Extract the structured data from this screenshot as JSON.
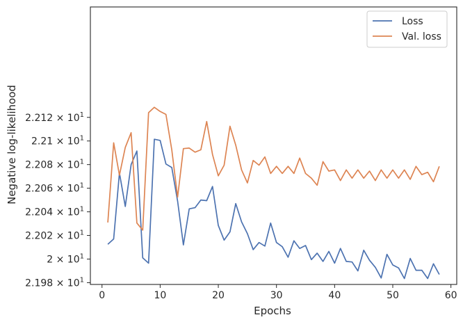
{
  "chart_data": {
    "type": "line",
    "xlabel": "Epochs",
    "ylabel": "Negative log-likelihood",
    "xlim": [
      -2,
      61
    ],
    "ylim": [
      21.9785,
      22.2135
    ],
    "xticks": [
      0,
      10,
      20,
      30,
      40,
      50,
      60
    ],
    "xtick_labels": [
      "0",
      "10",
      "20",
      "30",
      "40",
      "50",
      "60"
    ],
    "yticks": [
      21.98,
      22.0,
      22.02,
      22.04,
      22.06,
      22.08,
      22.1,
      22.12
    ],
    "ytick_labels": [
      {
        "mantissa": "2.198",
        "exponent": "1"
      },
      {
        "mantissa": "2",
        "exponent": "1"
      },
      {
        "mantissa": "2.202",
        "exponent": "1"
      },
      {
        "mantissa": "2.204",
        "exponent": "1"
      },
      {
        "mantissa": "2.206",
        "exponent": "1"
      },
      {
        "mantissa": "2.208",
        "exponent": "1"
      },
      {
        "mantissa": "2.21",
        "exponent": "1"
      },
      {
        "mantissa": "2.212",
        "exponent": "1"
      }
    ],
    "grid": false,
    "legend_position": "top-right",
    "series": [
      {
        "name": "Loss",
        "color": "#4c72b0",
        "x": [
          1,
          2,
          3,
          4,
          5,
          6,
          7,
          8,
          9,
          10,
          11,
          12,
          13,
          14,
          15,
          16,
          17,
          18,
          19,
          20,
          21,
          22,
          23,
          24,
          25,
          26,
          27,
          28,
          29,
          30,
          31,
          32,
          33,
          34,
          35,
          36,
          37,
          38,
          39,
          40,
          41,
          42,
          43,
          44,
          45,
          46,
          47,
          48,
          49,
          50,
          51,
          52,
          53,
          54,
          55,
          56,
          57,
          58
        ],
        "values": [
          22.0125,
          22.017,
          22.073,
          22.0445,
          22.08,
          22.0915,
          22.001,
          21.9965,
          22.1015,
          22.1005,
          22.0805,
          22.0775,
          22.049,
          22.012,
          22.0425,
          22.0435,
          22.05,
          22.0495,
          22.0615,
          22.0285,
          22.016,
          22.023,
          22.047,
          22.0315,
          22.0215,
          22.008,
          22.014,
          22.011,
          22.0305,
          22.014,
          22.0105,
          22.0015,
          22.0155,
          22.009,
          22.0115,
          21.9995,
          22.005,
          21.998,
          22.0065,
          21.9965,
          22.009,
          21.998,
          21.9975,
          21.99,
          22.0075,
          21.999,
          21.993,
          21.984,
          22.004,
          21.995,
          21.9925,
          21.9835,
          22.0005,
          21.9905,
          21.9905,
          21.9835,
          21.996,
          21.987
        ]
      },
      {
        "name": "Val. loss",
        "color": "#dd8452",
        "x": [
          1,
          2,
          3,
          4,
          5,
          6,
          7,
          8,
          9,
          10,
          11,
          12,
          13,
          14,
          15,
          16,
          17,
          18,
          19,
          20,
          21,
          22,
          23,
          24,
          25,
          26,
          27,
          28,
          29,
          30,
          31,
          32,
          33,
          34,
          35,
          36,
          37,
          38,
          39,
          40,
          41,
          42,
          43,
          44,
          45,
          46,
          47,
          48,
          49,
          50,
          51,
          52,
          53,
          54,
          55,
          56,
          57,
          58
        ],
        "values": [
          22.031,
          22.0985,
          22.071,
          22.0945,
          22.107,
          22.0305,
          22.0245,
          22.124,
          22.1285,
          22.125,
          22.1225,
          22.0925,
          22.0525,
          22.0935,
          22.094,
          22.0905,
          22.0925,
          22.1165,
          22.0885,
          22.0705,
          22.0795,
          22.1125,
          22.0965,
          22.0755,
          22.0645,
          22.0835,
          22.0795,
          22.0865,
          22.0725,
          22.0785,
          22.0725,
          22.0785,
          22.0725,
          22.0855,
          22.0725,
          22.0685,
          22.0625,
          22.0825,
          22.0745,
          22.0755,
          22.0665,
          22.0755,
          22.0685,
          22.0755,
          22.0685,
          22.0745,
          22.0665,
          22.0755,
          22.0685,
          22.0755,
          22.0685,
          22.0755,
          22.0675,
          22.0785,
          22.0715,
          22.0735,
          22.0655,
          22.0785
        ]
      }
    ]
  }
}
